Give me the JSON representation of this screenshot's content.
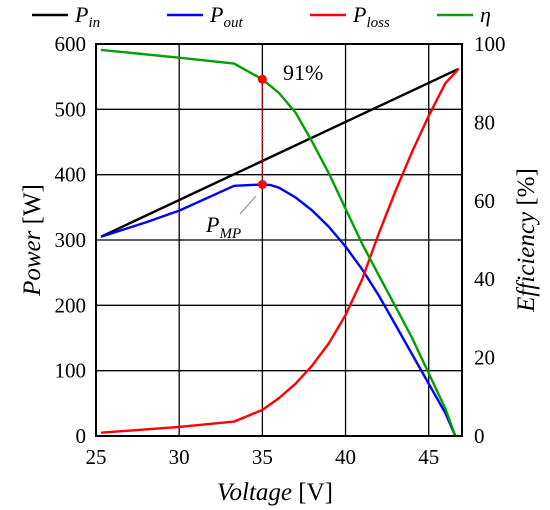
{
  "chart_data": {
    "type": "line",
    "xlabel": {
      "name": "Voltage",
      "unit": "[V]"
    },
    "ylabel_left": {
      "name": "Power",
      "unit": "[W]"
    },
    "ylabel_right": {
      "name": "Efficiency",
      "unit": "[%]"
    },
    "xlim": [
      25,
      47
    ],
    "ylim_left": [
      0,
      600
    ],
    "ylim_right": [
      0,
      100
    ],
    "x_ticks": [
      25,
      30,
      35,
      40,
      45
    ],
    "y_ticks_left": [
      0,
      100,
      200,
      300,
      400,
      500,
      600
    ],
    "y_ticks_right": [
      0,
      20,
      40,
      60,
      80,
      100
    ],
    "grid": true,
    "legend_position": "top",
    "series": [
      {
        "name": "P",
        "subscript": "in",
        "color": "#000000",
        "axis": "left",
        "x": [
          25.3,
          46.8
        ],
        "y": [
          305,
          562
        ]
      },
      {
        "name": "P",
        "subscript": "out",
        "color": "#0000ff",
        "axis": "left",
        "x": [
          25.3,
          28,
          30,
          33.3,
          35,
          35.5,
          36,
          37,
          38,
          39,
          40,
          41,
          42,
          43,
          44,
          45,
          46,
          46.6
        ],
        "y": [
          305,
          327,
          345,
          383,
          385,
          384,
          380,
          365,
          345,
          320,
          290,
          255,
          215,
          170,
          125,
          80,
          35,
          0
        ]
      },
      {
        "name": "P",
        "subscript": "loss",
        "color": "#ff0000",
        "axis": "left",
        "x": [
          25.3,
          30,
          33.3,
          35,
          36,
          37,
          38,
          39,
          40,
          41,
          42,
          43,
          44,
          45,
          46,
          46.8
        ],
        "y": [
          5,
          14,
          22,
          40,
          58,
          80,
          108,
          142,
          185,
          240,
          310,
          375,
          435,
          490,
          540,
          562
        ]
      },
      {
        "name": "η",
        "subscript": "",
        "color": "#00a000",
        "axis": "right",
        "x": [
          25.3,
          30,
          33.3,
          35,
          36,
          37,
          38,
          39,
          40,
          41,
          42,
          43,
          44,
          45,
          46,
          46.6
        ],
        "y": [
          98.5,
          96.5,
          95,
          91,
          87.5,
          82.5,
          75,
          67,
          58,
          49,
          41,
          33,
          25,
          16,
          7,
          0
        ]
      }
    ],
    "annotations": [
      {
        "text": "91%",
        "x": 35,
        "y_right": 91
      },
      {
        "text": "P",
        "subscript": "MP",
        "x": 35,
        "y_left": 385
      }
    ]
  },
  "colors": {
    "marker": "#ff0000",
    "grid": "#000000"
  }
}
